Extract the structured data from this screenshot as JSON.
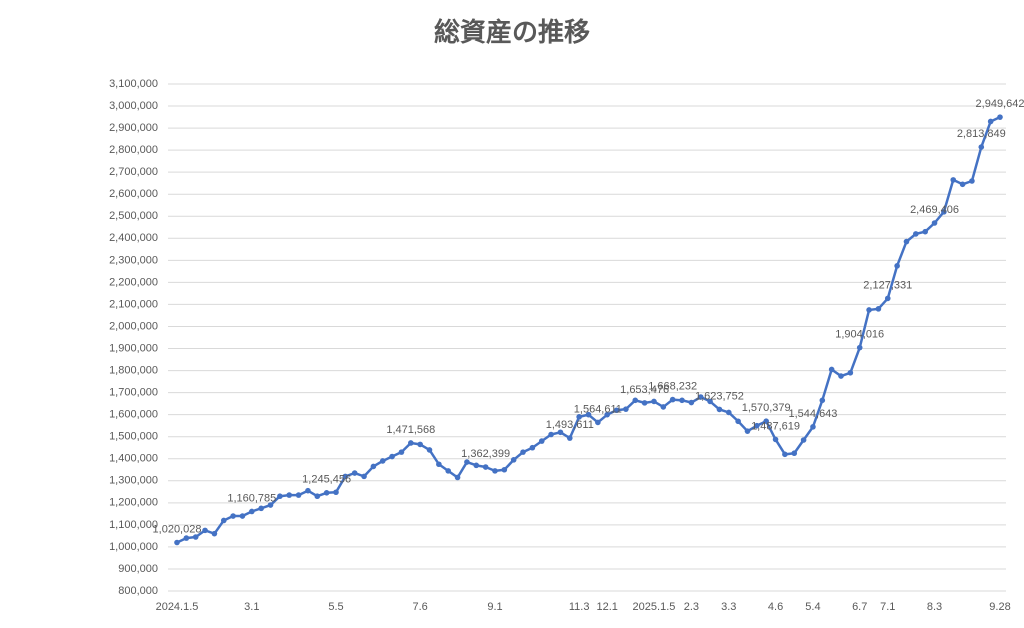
{
  "chart_data": {
    "type": "line",
    "title": "総資産の推移",
    "color": "#4472c4",
    "grid": true,
    "categories": [
      "2024.1.5",
      null,
      null,
      null,
      null,
      null,
      null,
      null,
      "3.1",
      null,
      null,
      null,
      null,
      null,
      null,
      null,
      null,
      "5.5",
      null,
      null,
      null,
      null,
      null,
      null,
      null,
      null,
      "7.6",
      null,
      null,
      null,
      null,
      null,
      null,
      null,
      "9.1",
      null,
      null,
      null,
      null,
      null,
      null,
      null,
      null,
      "11.3",
      null,
      null,
      "12.1",
      null,
      null,
      null,
      null,
      "2025.1.5",
      null,
      null,
      null,
      "2.3",
      null,
      null,
      null,
      "3.3",
      null,
      null,
      null,
      null,
      "4.6",
      null,
      null,
      null,
      "5.4",
      null,
      null,
      null,
      null,
      "6.7",
      null,
      null,
      "7.1",
      null,
      null,
      null,
      null,
      "8.3",
      null,
      null,
      null,
      null,
      null,
      null,
      "9.28"
    ],
    "values": [
      1020028,
      1040000,
      1045000,
      1075000,
      1060000,
      1120000,
      1140000,
      1140000,
      1160785,
      1175000,
      1190000,
      1230000,
      1235000,
      1235000,
      1255000,
      1230000,
      1245456,
      1248000,
      1320000,
      1335000,
      1320000,
      1365000,
      1390000,
      1410000,
      1430000,
      1471568,
      1465000,
      1440000,
      1375000,
      1345000,
      1315000,
      1385000,
      1370000,
      1362399,
      1345000,
      1350000,
      1395000,
      1430000,
      1450000,
      1480000,
      1510000,
      1520000,
      1493611,
      1590000,
      1600000,
      1564611,
      1600000,
      1620000,
      1625000,
      1665000,
      1653476,
      1660000,
      1635000,
      1668232,
      1665000,
      1655000,
      1680000,
      1660000,
      1623752,
      1610000,
      1570000,
      1525000,
      1550000,
      1570379,
      1487619,
      1420000,
      1425000,
      1485000,
      1544643,
      1665000,
      1805000,
      1775000,
      1790000,
      1904016,
      2075000,
      2080000,
      2127331,
      2275000,
      2385000,
      2420000,
      2430000,
      2469406,
      2520000,
      2665000,
      2645000,
      2660000,
      2813849,
      2930000,
      2949642
    ],
    "value_labels": [
      "1,020,028",
      null,
      null,
      null,
      null,
      null,
      null,
      null,
      "1,160,785",
      null,
      null,
      null,
      null,
      null,
      null,
      null,
      "1,245,456",
      null,
      null,
      null,
      null,
      null,
      null,
      null,
      null,
      "1,471,568",
      null,
      null,
      null,
      null,
      null,
      null,
      null,
      "1,362,399",
      null,
      null,
      null,
      null,
      null,
      null,
      null,
      null,
      "1,493,611",
      null,
      null,
      "1,564,611",
      null,
      null,
      null,
      null,
      "1,653,476",
      null,
      null,
      "1,668,232",
      null,
      null,
      null,
      null,
      "1,623,752",
      null,
      null,
      null,
      null,
      "1,570,379",
      "1,487,619",
      null,
      null,
      null,
      "1,544,643",
      null,
      null,
      null,
      null,
      "1,904,016",
      null,
      null,
      "2,127,331",
      null,
      null,
      null,
      null,
      "2,469,406",
      null,
      null,
      null,
      null,
      "2,813,849",
      null,
      "2,949,642"
    ],
    "ylim": [
      800000,
      3100000
    ],
    "yticks": [
      {
        "value": 800000,
        "label": "800,000"
      },
      {
        "value": 900000,
        "label": "900,000"
      },
      {
        "value": 1000000,
        "label": "1,000,000"
      },
      {
        "value": 1100000,
        "label": "1,100,000"
      },
      {
        "value": 1200000,
        "label": "1,200,000"
      },
      {
        "value": 1300000,
        "label": "1,300,000"
      },
      {
        "value": 1400000,
        "label": "1,400,000"
      },
      {
        "value": 1500000,
        "label": "1,500,000"
      },
      {
        "value": 1600000,
        "label": "1,600,000"
      },
      {
        "value": 1700000,
        "label": "1,700,000"
      },
      {
        "value": 1800000,
        "label": "1,800,000"
      },
      {
        "value": 1900000,
        "label": "1,900,000"
      },
      {
        "value": 2000000,
        "label": "2,000,000"
      },
      {
        "value": 2100000,
        "label": "2,100,000"
      },
      {
        "value": 2200000,
        "label": "2,200,000"
      },
      {
        "value": 2300000,
        "label": "2,300,000"
      },
      {
        "value": 2400000,
        "label": "2,400,000"
      },
      {
        "value": 2500000,
        "label": "2,500,000"
      },
      {
        "value": 2600000,
        "label": "2,600,000"
      },
      {
        "value": 2700000,
        "label": "2,700,000"
      },
      {
        "value": 2800000,
        "label": "2,800,000"
      },
      {
        "value": 2900000,
        "label": "2,900,000"
      },
      {
        "value": 3000000,
        "label": "3,000,000"
      },
      {
        "value": 3100000,
        "label": "3,100,000"
      }
    ]
  }
}
